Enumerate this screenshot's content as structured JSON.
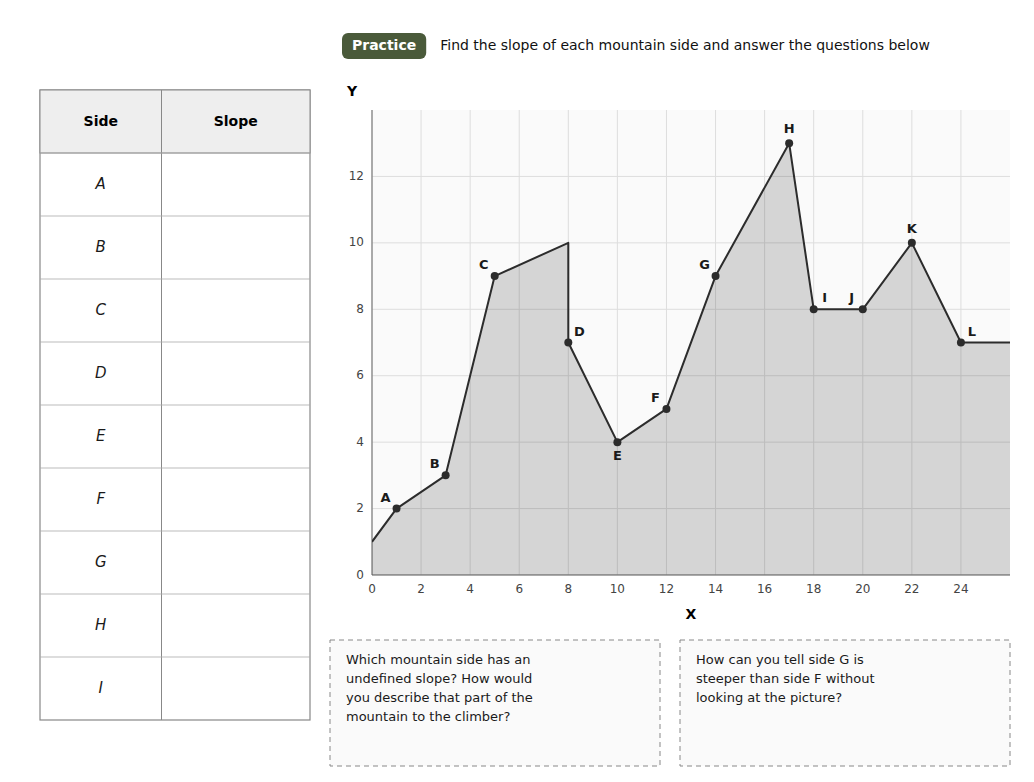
{
  "chart_data": {
    "type": "area",
    "badge": "Practice",
    "title": "Find the slope of each mountain side and answer the questions below",
    "x": [
      0,
      1,
      3,
      5,
      8,
      8,
      10,
      12,
      14,
      17,
      18,
      20,
      22,
      24,
      26
    ],
    "values": [
      1,
      2,
      3,
      9,
      10,
      7,
      4,
      5,
      9,
      13,
      8,
      8,
      10,
      7,
      7
    ],
    "color": "#2c2c2c",
    "marker": "circle",
    "annotations": [
      {
        "text": "A",
        "x": 1,
        "y": 2
      },
      {
        "text": "B",
        "x": 3,
        "y": 3
      },
      {
        "text": "C",
        "x": 5,
        "y": 9
      },
      {
        "text": "D",
        "x": 8,
        "y": 7
      },
      {
        "text": "E",
        "x": 10,
        "y": 4
      },
      {
        "text": "F",
        "x": 12,
        "y": 5
      },
      {
        "text": "G",
        "x": 14,
        "y": 9
      },
      {
        "text": "H",
        "x": 17,
        "y": 13
      },
      {
        "text": "I",
        "x": 18,
        "y": 8
      },
      {
        "text": "J",
        "x": 20,
        "y": 8
      },
      {
        "text": "K",
        "x": 22,
        "y": 10
      },
      {
        "text": "L",
        "x": 24,
        "y": 7
      }
    ],
    "xlim": [
      0,
      26
    ],
    "ylim": [
      0,
      14
    ],
    "xticks": [
      0,
      2,
      4,
      6,
      8,
      10,
      12,
      14,
      16,
      18,
      20,
      22,
      24
    ],
    "yticks": [
      0,
      2,
      4,
      6,
      8,
      10,
      12
    ],
    "xlabel": "X",
    "ylabel": "Y",
    "grid": true,
    "table": {
      "columns": [
        "Side",
        "Slope"
      ],
      "rows": [
        "A",
        "B",
        "C",
        "D",
        "E",
        "F",
        "G",
        "H",
        "I"
      ]
    },
    "questions": [
      "Which mountain side has an\nundefined slope? How would\nyou describe that part of the\nmountain to the climber?",
      "How can you tell side G is\nsteeper than side F without\nlooking at the picture?"
    ]
  }
}
